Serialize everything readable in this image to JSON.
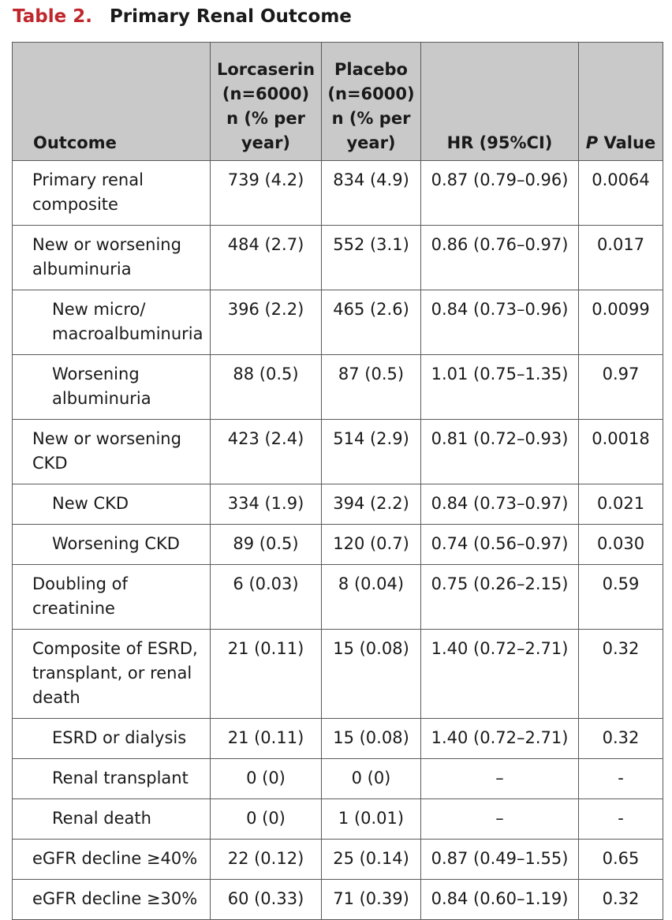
{
  "caption": {
    "label": "Table 2.",
    "title": "Primary Renal Outcome"
  },
  "columns": [
    "Outcome",
    "Lorcaserin (n=6000) n (% per year)",
    "Placebo (n=6000) n (% per year)",
    "HR (95%CI)",
    "P Value"
  ],
  "pvalue_header": {
    "italic": "P",
    "rest": " Value"
  },
  "rows": [
    {
      "outcome": "Primary renal composite",
      "lorcaserin": "739 (4.2)",
      "placebo": "834 (4.9)",
      "hr": "0.87 (0.79–0.96)",
      "p": "0.0064",
      "indent": false
    },
    {
      "outcome": "New or worsening albuminuria",
      "lorcaserin": "484 (2.7)",
      "placebo": "552 (3.1)",
      "hr": "0.86 (0.76–0.97)",
      "p": "0.017",
      "indent": false
    },
    {
      "outcome": "New micro/ macroalbuminuria",
      "lorcaserin": "396 (2.2)",
      "placebo": "465 (2.6)",
      "hr": "0.84 (0.73–0.96)",
      "p": "0.0099",
      "indent": true
    },
    {
      "outcome": "Worsening albuminuria",
      "lorcaserin": "88 (0.5)",
      "placebo": "87 (0.5)",
      "hr": "1.01 (0.75–1.35)",
      "p": "0.97",
      "indent": true
    },
    {
      "outcome": "New or worsening CKD",
      "lorcaserin": "423 (2.4)",
      "placebo": "514 (2.9)",
      "hr": "0.81 (0.72–0.93)",
      "p": "0.0018",
      "indent": false
    },
    {
      "outcome": "New CKD",
      "lorcaserin": "334 (1.9)",
      "placebo": "394 (2.2)",
      "hr": "0.84 (0.73–0.97)",
      "p": "0.021",
      "indent": true
    },
    {
      "outcome": "Worsening CKD",
      "lorcaserin": "89 (0.5)",
      "placebo": "120 (0.7)",
      "hr": "0.74 (0.56–0.97)",
      "p": "0.030",
      "indent": true
    },
    {
      "outcome": "Doubling of creatinine",
      "lorcaserin": "6 (0.03)",
      "placebo": "8 (0.04)",
      "hr": "0.75 (0.26–2.15)",
      "p": "0.59",
      "indent": false
    },
    {
      "outcome": "Composite of ESRD, transplant, or renal death",
      "lorcaserin": "21 (0.11)",
      "placebo": "15 (0.08)",
      "hr": "1.40 (0.72–2.71)",
      "p": "0.32",
      "indent": false
    },
    {
      "outcome": "ESRD or dialysis",
      "lorcaserin": "21 (0.11)",
      "placebo": "15 (0.08)",
      "hr": "1.40 (0.72–2.71)",
      "p": "0.32",
      "indent": true
    },
    {
      "outcome": "Renal transplant",
      "lorcaserin": "0 (0)",
      "placebo": "0 (0)",
      "hr": "–",
      "p": "-",
      "indent": true
    },
    {
      "outcome": "Renal death",
      "lorcaserin": "0 (0)",
      "placebo": "1 (0.01)",
      "hr": "–",
      "p": "-",
      "indent": true
    },
    {
      "outcome": "eGFR decline ≥40%",
      "lorcaserin": "22 (0.12)",
      "placebo": "25 (0.14)",
      "hr": "0.87 (0.49–1.55)",
      "p": "0.65",
      "indent": false
    },
    {
      "outcome": "eGFR decline ≥30%",
      "lorcaserin": "60 (0.33)",
      "placebo": "71 (0.39)",
      "hr": "0.84 (0.60–1.19)",
      "p": "0.32",
      "indent": false
    }
  ]
}
